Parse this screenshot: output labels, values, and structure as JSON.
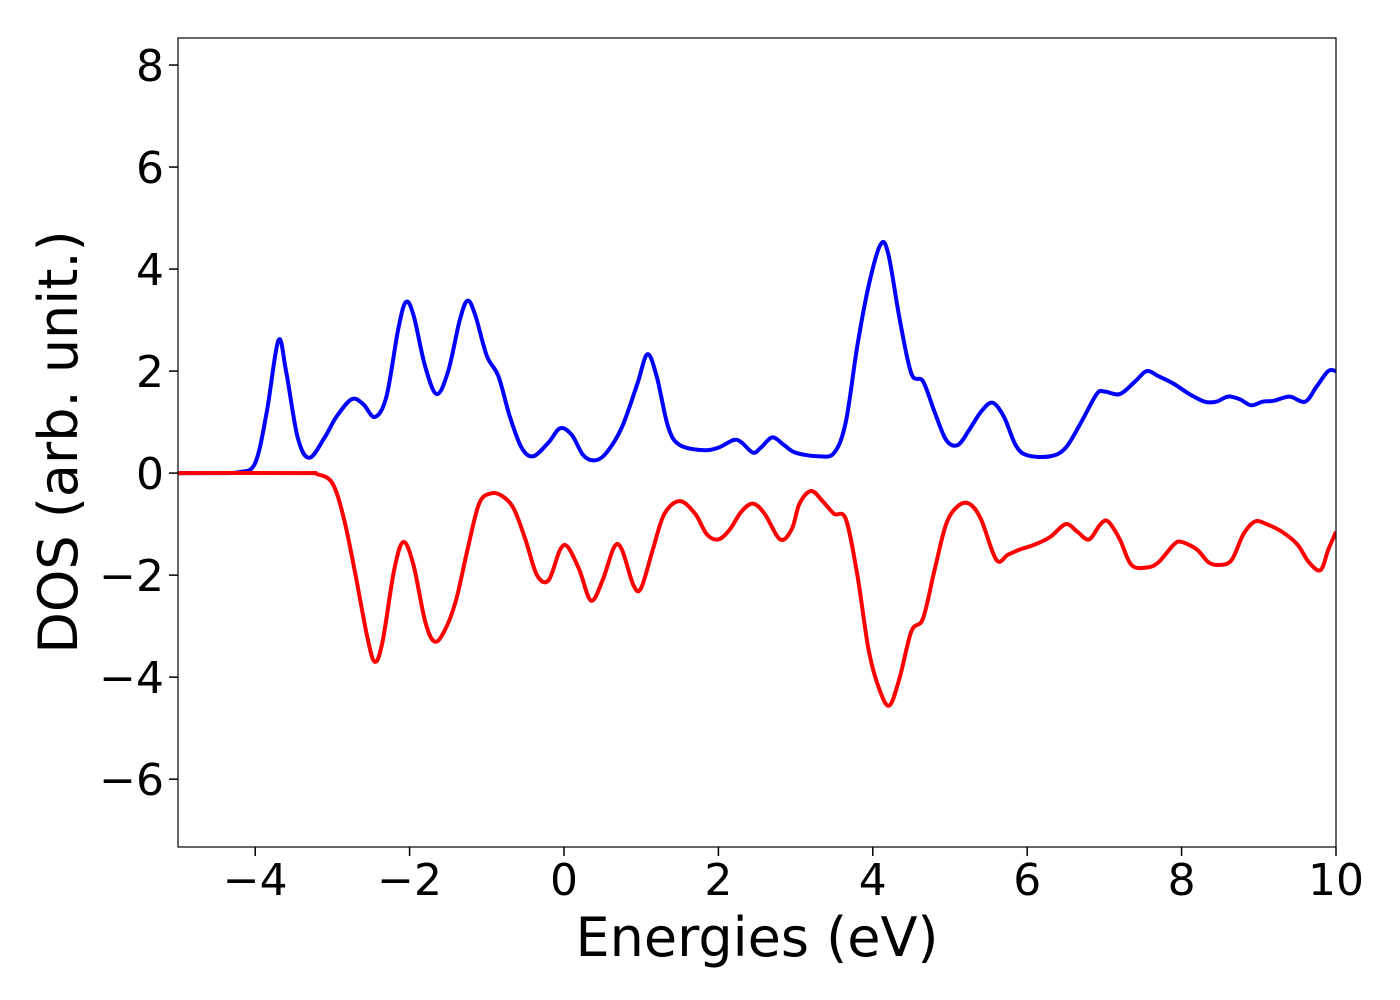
{
  "chart_data": {
    "type": "line",
    "xlabel": "Energies (eV)",
    "ylabel": "DOS (arb. unit.)",
    "xlim": [
      -5,
      10
    ],
    "ylim": [
      -7.33,
      8.53
    ],
    "xticks": [
      {
        "value": -4,
        "label": "−4"
      },
      {
        "value": -2,
        "label": "−2"
      },
      0,
      2,
      4,
      6,
      8,
      10
    ],
    "yticks": [
      {
        "value": -6,
        "label": "−6"
      },
      {
        "value": -4,
        "label": "−4"
      },
      {
        "value": -2,
        "label": "−2"
      },
      0,
      2,
      4,
      6,
      8
    ],
    "grid": false,
    "series": [
      {
        "color": "#0000ff",
        "x": [
          -5,
          -4.5,
          -4.2,
          -4.0,
          -3.85,
          -3.7,
          -3.6,
          -3.45,
          -3.3,
          -3.1,
          -2.95,
          -2.75,
          -2.6,
          -2.45,
          -2.3,
          -2.15,
          -2.05,
          -1.95,
          -1.8,
          -1.65,
          -1.5,
          -1.35,
          -1.25,
          -1.15,
          -1.0,
          -0.85,
          -0.7,
          -0.55,
          -0.4,
          -0.2,
          -0.05,
          0.1,
          0.25,
          0.4,
          0.55,
          0.75,
          0.95,
          1.08,
          1.2,
          1.35,
          1.5,
          1.8,
          2.0,
          2.2,
          2.3,
          2.45,
          2.55,
          2.7,
          2.85,
          3.0,
          3.3,
          3.5,
          3.65,
          3.8,
          3.95,
          4.1,
          4.2,
          4.35,
          4.5,
          4.65,
          4.8,
          4.95,
          5.1,
          5.25,
          5.4,
          5.55,
          5.7,
          5.85,
          6.0,
          6.3,
          6.5,
          6.7,
          6.9,
          7.0,
          7.2,
          7.4,
          7.55,
          7.7,
          7.9,
          8.1,
          8.3,
          8.45,
          8.6,
          8.75,
          8.9,
          9.05,
          9.2,
          9.4,
          9.6,
          9.75,
          9.9,
          10
        ],
        "values": [
          0,
          0,
          0.02,
          0.2,
          1.2,
          2.6,
          2.0,
          0.7,
          0.3,
          0.7,
          1.1,
          1.45,
          1.35,
          1.1,
          1.5,
          2.8,
          3.35,
          3.1,
          2.1,
          1.55,
          2.0,
          3.0,
          3.38,
          3.1,
          2.3,
          1.9,
          1.1,
          0.5,
          0.33,
          0.6,
          0.88,
          0.75,
          0.35,
          0.25,
          0.4,
          0.9,
          1.75,
          2.33,
          1.9,
          0.9,
          0.55,
          0.45,
          0.5,
          0.65,
          0.6,
          0.4,
          0.5,
          0.7,
          0.55,
          0.4,
          0.33,
          0.4,
          1.0,
          2.5,
          3.7,
          4.48,
          4.3,
          3.0,
          1.95,
          1.8,
          1.2,
          0.65,
          0.55,
          0.85,
          1.2,
          1.38,
          1.1,
          0.55,
          0.35,
          0.33,
          0.5,
          1.0,
          1.55,
          1.6,
          1.55,
          1.8,
          2.0,
          1.9,
          1.75,
          1.55,
          1.4,
          1.4,
          1.5,
          1.45,
          1.33,
          1.4,
          1.42,
          1.5,
          1.4,
          1.7,
          2.0,
          2.0
        ]
      },
      {
        "color": "#ff0000",
        "x": [
          -5,
          -3.4,
          -3.2,
          -3.0,
          -2.85,
          -2.7,
          -2.55,
          -2.45,
          -2.35,
          -2.2,
          -2.08,
          -1.95,
          -1.8,
          -1.68,
          -1.55,
          -1.4,
          -1.25,
          -1.1,
          -0.95,
          -0.8,
          -0.65,
          -0.5,
          -0.35,
          -0.2,
          -0.05,
          0.05,
          0.2,
          0.35,
          0.5,
          0.65,
          0.75,
          0.9,
          1.0,
          1.15,
          1.3,
          1.5,
          1.7,
          1.85,
          2.0,
          2.15,
          2.3,
          2.45,
          2.6,
          2.8,
          2.95,
          3.05,
          3.2,
          3.35,
          3.5,
          3.65,
          3.8,
          3.95,
          4.1,
          4.22,
          4.35,
          4.5,
          4.65,
          4.8,
          4.95,
          5.1,
          5.25,
          5.4,
          5.6,
          5.75,
          5.9,
          6.1,
          6.3,
          6.5,
          6.65,
          6.8,
          6.95,
          7.05,
          7.2,
          7.35,
          7.55,
          7.7,
          7.9,
          8.0,
          8.2,
          8.35,
          8.5,
          8.65,
          8.8,
          8.95,
          9.1,
          9.3,
          9.5,
          9.65,
          9.8,
          9.9,
          10
        ],
        "values": [
          0,
          0,
          -0.02,
          -0.2,
          -0.9,
          -2.0,
          -3.2,
          -3.7,
          -3.3,
          -1.9,
          -1.35,
          -1.8,
          -2.9,
          -3.3,
          -3.1,
          -2.5,
          -1.5,
          -0.6,
          -0.4,
          -0.45,
          -0.7,
          -1.3,
          -2.0,
          -2.1,
          -1.5,
          -1.45,
          -1.9,
          -2.5,
          -2.1,
          -1.45,
          -1.5,
          -2.2,
          -2.25,
          -1.5,
          -0.8,
          -0.55,
          -0.8,
          -1.2,
          -1.3,
          -1.1,
          -0.75,
          -0.6,
          -0.8,
          -1.3,
          -1.1,
          -0.6,
          -0.35,
          -0.55,
          -0.8,
          -0.9,
          -2.0,
          -3.5,
          -4.3,
          -4.55,
          -4.0,
          -3.1,
          -2.85,
          -1.9,
          -1.0,
          -0.65,
          -0.6,
          -0.9,
          -1.7,
          -1.6,
          -1.5,
          -1.4,
          -1.25,
          -1.0,
          -1.15,
          -1.3,
          -1.0,
          -0.95,
          -1.3,
          -1.8,
          -1.85,
          -1.75,
          -1.4,
          -1.35,
          -1.5,
          -1.75,
          -1.8,
          -1.7,
          -1.2,
          -0.95,
          -1.0,
          -1.15,
          -1.4,
          -1.75,
          -1.9,
          -1.5,
          -1.15
        ]
      }
    ]
  }
}
